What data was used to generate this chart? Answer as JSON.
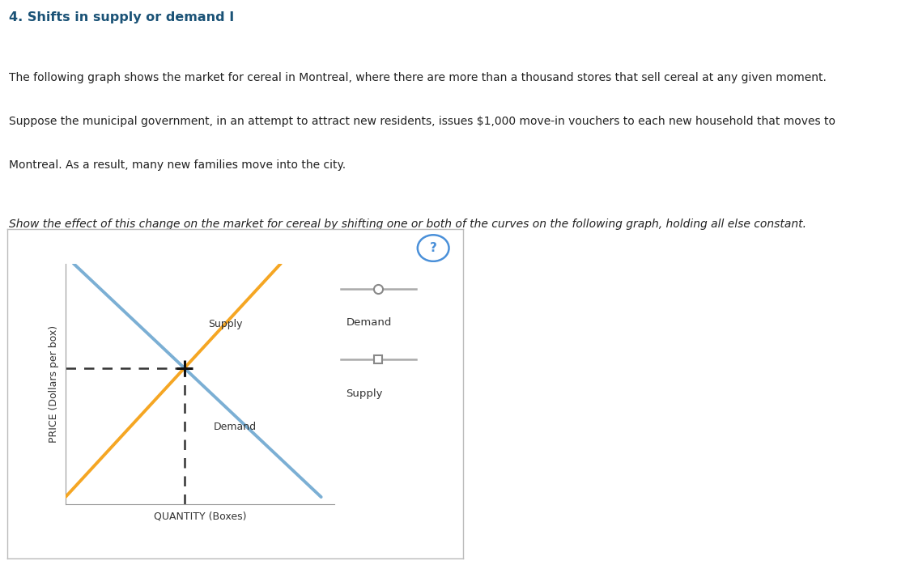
{
  "title": "4. Shifts in supply or demand I",
  "para1": "The following graph shows the market for cereal in Montreal, where there are more than a thousand stores that sell cereal at any given moment.",
  "para2": "Suppose the municipal government, in an attempt to attract new residents, issues $1,000 move-in vouchers to each new household that moves to",
  "para3": "Montreal. As a result, many new families move into the city.",
  "italic_text": "Show the effect of this change on the market for cereal by shifting one or both of the curves on the following graph, holding all else constant.",
  "supply_color": "#F5A623",
  "demand_color": "#7BAFD4",
  "dashed_color": "#333333",
  "background_color": "#ffffff",
  "plot_bg_color": "#ffffff",
  "border_color": "#cccccc",
  "xlabel": "QUANTITY (Boxes)",
  "ylabel": "PRICE (Dollars per box)",
  "legend_demand_label": "Demand",
  "legend_supply_label": "Supply",
  "question_mark_color": "#4a90d9",
  "title_color": "#1a5276",
  "axis_lim": [
    0,
    10
  ]
}
